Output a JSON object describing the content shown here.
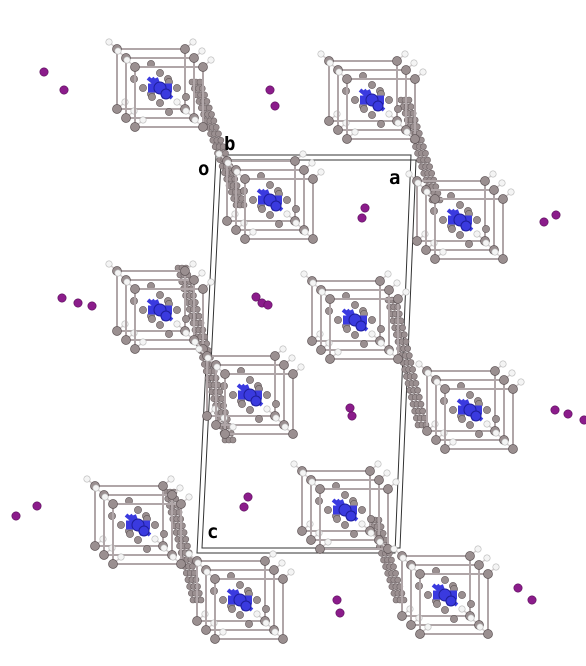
{
  "figure": {
    "background": "#ffffff",
    "unit_cell_labels": {
      "origin": "o",
      "a": "a",
      "b": "b",
      "c": "c"
    },
    "colors": {
      "carbon": "#9a8f90",
      "hydrogen": "#f4f4f4",
      "nitrogen": "#3a3adf",
      "iodine": "#8b1c8b",
      "bond": "#b0a6a8",
      "cell": "#333333"
    }
  }
}
